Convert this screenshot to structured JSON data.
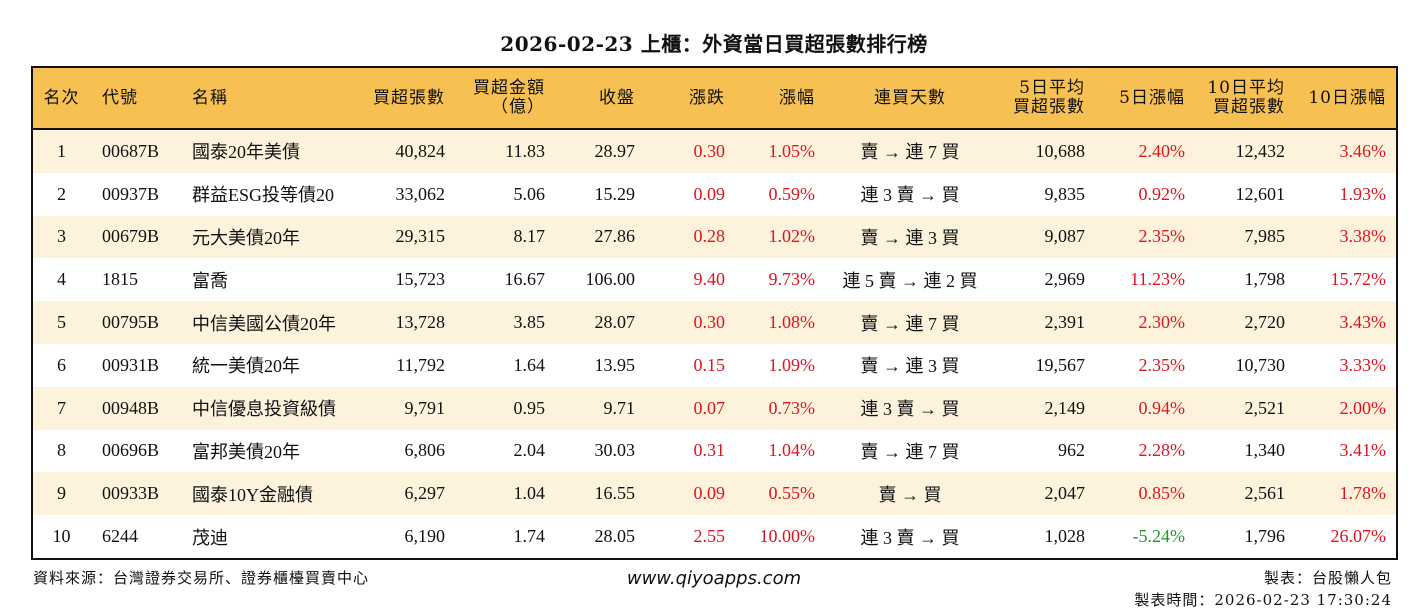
{
  "title": "2026-02-23 上櫃：外資當日買超張數排行榜",
  "colors": {
    "header_bg": "#f7c052",
    "row_alt_bg": "#fdf3dd",
    "up": "#e0141e",
    "down": "#1d9a2a"
  },
  "headers": [
    "名次",
    "代號",
    "名稱",
    "買超張數",
    "買超金額\n（億）",
    "收盤",
    "漲跌",
    "漲幅",
    "連買天數",
    "5日平均\n買超張數",
    "5日漲幅",
    "10日平均\n買超張數",
    "10日漲幅"
  ],
  "rows": [
    [
      "1",
      "00687B",
      "國泰20年美債",
      "40,824",
      "11.83",
      "28.97",
      "0.30",
      "1.05%",
      "賣 → 連 7 買",
      "10,688",
      "2.40%",
      "12,432",
      "3.46%"
    ],
    [
      "2",
      "00937B",
      "群益ESG投等債20",
      "33,062",
      "5.06",
      "15.29",
      "0.09",
      "0.59%",
      "連 3 賣 → 買",
      "9,835",
      "0.92%",
      "12,601",
      "1.93%"
    ],
    [
      "3",
      "00679B",
      "元大美債20年",
      "29,315",
      "8.17",
      "27.86",
      "0.28",
      "1.02%",
      "賣 → 連 3 買",
      "9,087",
      "2.35%",
      "7,985",
      "3.38%"
    ],
    [
      "4",
      "1815",
      "富喬",
      "15,723",
      "16.67",
      "106.00",
      "9.40",
      "9.73%",
      "連 5 賣 → 連 2 買",
      "2,969",
      "11.23%",
      "1,798",
      "15.72%"
    ],
    [
      "5",
      "00795B",
      "中信美國公債20年",
      "13,728",
      "3.85",
      "28.07",
      "0.30",
      "1.08%",
      "賣 → 連 7 買",
      "2,391",
      "2.30%",
      "2,720",
      "3.43%"
    ],
    [
      "6",
      "00931B",
      "統一美債20年",
      "11,792",
      "1.64",
      "13.95",
      "0.15",
      "1.09%",
      "賣 → 連 3 買",
      "19,567",
      "2.35%",
      "10,730",
      "3.33%"
    ],
    [
      "7",
      "00948B",
      "中信優息投資級債",
      "9,791",
      "0.95",
      "9.71",
      "0.07",
      "0.73%",
      "連 3 賣 → 買",
      "2,149",
      "0.94%",
      "2,521",
      "2.00%"
    ],
    [
      "8",
      "00696B",
      "富邦美債20年",
      "6,806",
      "2.04",
      "30.03",
      "0.31",
      "1.04%",
      "賣 → 連 7 買",
      "962",
      "2.28%",
      "1,340",
      "3.41%"
    ],
    [
      "9",
      "00933B",
      "國泰10Y金融債",
      "6,297",
      "1.04",
      "16.55",
      "0.09",
      "0.55%",
      "賣 → 買",
      "2,047",
      "0.85%",
      "2,561",
      "1.78%"
    ],
    [
      "10",
      "6244",
      "茂迪",
      "6,190",
      "1.74",
      "28.05",
      "2.55",
      "10.00%",
      "連 3 賣 → 買",
      "1,028",
      "-5.24%",
      "1,796",
      "26.07%"
    ]
  ],
  "footer": {
    "source": "資料來源：台灣證券交易所、證券櫃檯買賣中心",
    "website": "www.qiyoapps.com",
    "author": "製表：台股懶人包",
    "made_time": "製表時間：2026-02-23 17:30:24"
  }
}
